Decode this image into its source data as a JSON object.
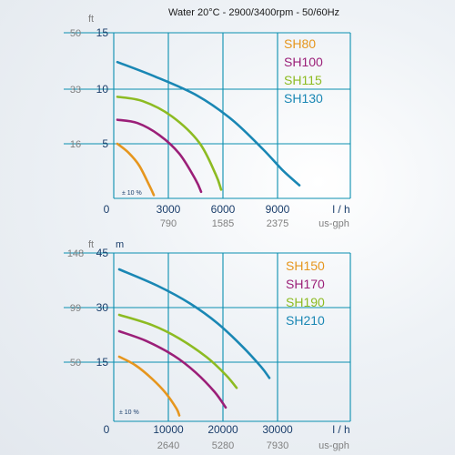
{
  "header": {
    "title": "Water 20°C - 2900/3400rpm - 50/60Hz"
  },
  "colors": {
    "grid": "#0a8fb0",
    "axis_text": "#1b3e6b",
    "secondary_text": "#808080",
    "orange": "#e6961e",
    "purple": "#9b1f78",
    "green": "#8dbb22",
    "blue": "#1a87b4"
  },
  "chart_data": [
    {
      "type": "line",
      "title": "",
      "y_unit_left": "ft",
      "y_unit_right": "",
      "x_unit_label": "l / h",
      "x_secondary_unit": "us-gph",
      "origin_label": "0",
      "ylim": [
        0,
        15
      ],
      "xlim": [
        0,
        12000
      ],
      "y_ticks": [
        {
          "value": 5,
          "label": "5",
          "ft": "16"
        },
        {
          "value": 10,
          "label": "10",
          "ft": "33"
        },
        {
          "value": 15,
          "label": "15",
          "ft": "50"
        }
      ],
      "x_ticks": [
        {
          "value": 3000,
          "label": "3000",
          "gph": "790"
        },
        {
          "value": 6000,
          "label": "6000",
          "gph": "1585"
        },
        {
          "value": 9000,
          "label": "9000",
          "gph": "2375"
        }
      ],
      "tolerance": "± 10 %",
      "legend": [
        "SH80",
        "SH100",
        "SH115",
        "SH130"
      ],
      "series": [
        {
          "name": "SH80",
          "color": "orange",
          "points": [
            [
              200,
              5
            ],
            [
              800,
              4.2
            ],
            [
              1400,
              3.0
            ],
            [
              1950,
              1.2
            ],
            [
              2200,
              0.3
            ]
          ]
        },
        {
          "name": "SH100",
          "color": "purple",
          "points": [
            [
              200,
              7.2
            ],
            [
              1300,
              6.9
            ],
            [
              2500,
              5.8
            ],
            [
              3600,
              4.1
            ],
            [
              4500,
              1.7
            ],
            [
              4800,
              0.6
            ]
          ]
        },
        {
          "name": "SH115",
          "color": "green",
          "points": [
            [
              200,
              9.3
            ],
            [
              1600,
              8.9
            ],
            [
              3200,
              7.5
            ],
            [
              4700,
              5.1
            ],
            [
              5600,
              2.2
            ],
            [
              5900,
              0.8
            ]
          ]
        },
        {
          "name": "SH130",
          "color": "blue",
          "points": [
            [
              200,
              12.4
            ],
            [
              2300,
              11.1
            ],
            [
              4600,
              9.4
            ],
            [
              6500,
              7.2
            ],
            [
              8200,
              4.5
            ],
            [
              9200,
              2.6
            ],
            [
              9900,
              1.2
            ]
          ]
        }
      ]
    },
    {
      "type": "line",
      "title": "",
      "y_unit_left": "ft",
      "y_unit_right": "m",
      "x_unit_label": "l / h",
      "x_secondary_unit": "us-gph",
      "origin_label": "0",
      "ylim": [
        0,
        45
      ],
      "xlim": [
        0,
        40000
      ],
      "y_ticks": [
        {
          "value": 15,
          "label": "15",
          "ft": "50"
        },
        {
          "value": 30,
          "label": "30",
          "ft": "99"
        },
        {
          "value": 45,
          "label": "45",
          "ft": "148"
        }
      ],
      "x_ticks": [
        {
          "value": 10000,
          "label": "10000",
          "gph": "2640"
        },
        {
          "value": 20000,
          "label": "20000",
          "gph": "5280"
        },
        {
          "value": 30000,
          "label": "30000",
          "gph": "7930"
        }
      ],
      "tolerance": "± 10 %",
      "legend": [
        "SH150",
        "SH170",
        "SH190",
        "SH210"
      ],
      "series": [
        {
          "name": "SH150",
          "color": "orange",
          "points": [
            [
              1000,
              16.5
            ],
            [
              4000,
              14.2
            ],
            [
              7000,
              10.8
            ],
            [
              9500,
              7.2
            ],
            [
              11500,
              3.2
            ],
            [
              12000,
              1.5
            ]
          ]
        },
        {
          "name": "SH170",
          "color": "purple",
          "points": [
            [
              1000,
              23.5
            ],
            [
              6000,
              20.8
            ],
            [
              11000,
              16.8
            ],
            [
              15000,
              12.4
            ],
            [
              18500,
              7.4
            ],
            [
              20500,
              3.5
            ]
          ]
        },
        {
          "name": "SH190",
          "color": "green",
          "points": [
            [
              1000,
              28
            ],
            [
              7000,
              25.2
            ],
            [
              12000,
              21.5
            ],
            [
              17000,
              16.4
            ],
            [
              20500,
              11.8
            ],
            [
              22500,
              8.5
            ]
          ]
        },
        {
          "name": "SH210",
          "color": "blue",
          "points": [
            [
              1000,
              40.5
            ],
            [
              8000,
              36
            ],
            [
              14000,
              31.1
            ],
            [
              19000,
              25.7
            ],
            [
              23500,
              19.4
            ],
            [
              27000,
              13.8
            ],
            [
              28500,
              11
            ]
          ]
        }
      ]
    }
  ]
}
